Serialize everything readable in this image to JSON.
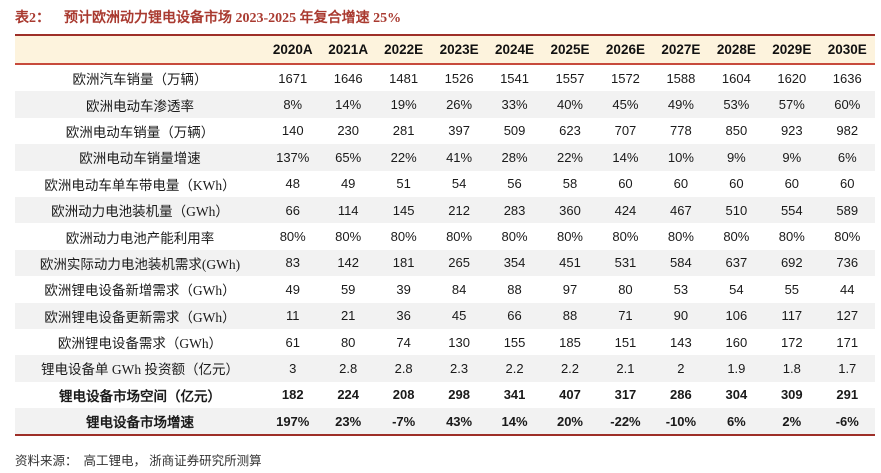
{
  "title": {
    "prefix": "表2：",
    "text": "预计欧洲动力锂电设备市场 2023-2025 年复合增速 25%"
  },
  "source": {
    "label": "资料来源：",
    "text": "高工锂电， 浙商证券研究所测算"
  },
  "colors": {
    "title_red": "#a93a30",
    "header_bg": "#fdf3dd",
    "border_dark_red": "#9e2f28",
    "border_light_red": "#c74a3c",
    "zebra_gray": "#f2f2f2"
  },
  "chart_data": {
    "type": "table",
    "title": "预计欧洲动力锂电设备市场 2023-2025 年复合增速 25%",
    "columns": [
      "2020A",
      "2021A",
      "2022E",
      "2023E",
      "2024E",
      "2025E",
      "2026E",
      "2027E",
      "2028E",
      "2029E",
      "2030E"
    ],
    "rows": [
      {
        "label": "欧洲汽车销量（万辆）",
        "bold": false,
        "values": [
          "1671",
          "1646",
          "1481",
          "1526",
          "1541",
          "1557",
          "1572",
          "1588",
          "1604",
          "1620",
          "1636"
        ]
      },
      {
        "label": "欧洲电动车渗透率",
        "bold": false,
        "values": [
          "8%",
          "14%",
          "19%",
          "26%",
          "33%",
          "40%",
          "45%",
          "49%",
          "53%",
          "57%",
          "60%"
        ]
      },
      {
        "label": "欧洲电动车销量（万辆）",
        "bold": false,
        "values": [
          "140",
          "230",
          "281",
          "397",
          "509",
          "623",
          "707",
          "778",
          "850",
          "923",
          "982"
        ]
      },
      {
        "label": "欧洲电动车销量增速",
        "bold": false,
        "values": [
          "137%",
          "65%",
          "22%",
          "41%",
          "28%",
          "22%",
          "14%",
          "10%",
          "9%",
          "9%",
          "6%"
        ]
      },
      {
        "label": "欧洲电动车单车带电量（KWh）",
        "bold": false,
        "values": [
          "48",
          "49",
          "51",
          "54",
          "56",
          "58",
          "60",
          "60",
          "60",
          "60",
          "60"
        ]
      },
      {
        "label": "欧洲动力电池装机量（GWh）",
        "bold": false,
        "values": [
          "66",
          "114",
          "145",
          "212",
          "283",
          "360",
          "424",
          "467",
          "510",
          "554",
          "589"
        ]
      },
      {
        "label": "欧洲动力电池产能利用率",
        "bold": false,
        "values": [
          "80%",
          "80%",
          "80%",
          "80%",
          "80%",
          "80%",
          "80%",
          "80%",
          "80%",
          "80%",
          "80%"
        ]
      },
      {
        "label": "欧洲实际动力电池装机需求(GWh)",
        "bold": false,
        "values": [
          "83",
          "142",
          "181",
          "265",
          "354",
          "451",
          "531",
          "584",
          "637",
          "692",
          "736"
        ]
      },
      {
        "label": "欧洲锂电设备新增需求（GWh）",
        "bold": false,
        "values": [
          "49",
          "59",
          "39",
          "84",
          "88",
          "97",
          "80",
          "53",
          "54",
          "55",
          "44"
        ]
      },
      {
        "label": "欧洲锂电设备更新需求（GWh）",
        "bold": false,
        "values": [
          "11",
          "21",
          "36",
          "45",
          "66",
          "88",
          "71",
          "90",
          "106",
          "117",
          "127"
        ]
      },
      {
        "label": "欧洲锂电设备需求（GWh）",
        "bold": false,
        "values": [
          "61",
          "80",
          "74",
          "130",
          "155",
          "185",
          "151",
          "143",
          "160",
          "172",
          "171"
        ]
      },
      {
        "label": "锂电设备单 GWh 投资额（亿元）",
        "bold": false,
        "values": [
          "3",
          "2.8",
          "2.8",
          "2.3",
          "2.2",
          "2.2",
          "2.1",
          "2",
          "1.9",
          "1.8",
          "1.7"
        ]
      },
      {
        "label": "锂电设备市场空间（亿元）",
        "bold": true,
        "values": [
          "182",
          "224",
          "208",
          "298",
          "341",
          "407",
          "317",
          "286",
          "304",
          "309",
          "291"
        ]
      },
      {
        "label": "锂电设备市场增速",
        "bold": true,
        "values": [
          "197%",
          "23%",
          "-7%",
          "43%",
          "14%",
          "20%",
          "-22%",
          "-10%",
          "6%",
          "2%",
          "-6%"
        ]
      }
    ]
  }
}
